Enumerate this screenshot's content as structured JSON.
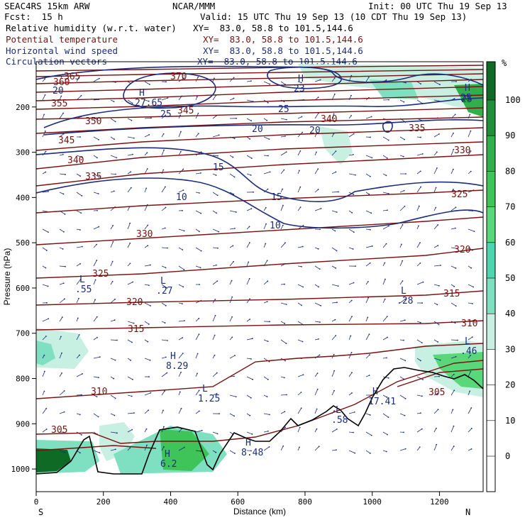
{
  "header": {
    "title_left": "SEAC4RS 15km ARW",
    "title_center": "NCAR/MMM",
    "init": "Init: 00 UTC Thu 19 Sep 13",
    "fcst": "Fcst:  15 h",
    "valid": "Valid: 15 UTC Thu 19 Sep 13 (10 CDT Thu 19 Sep 13)",
    "fields": [
      {
        "name": "Relative humidity (w.r.t. water)",
        "xy": "XY=  83.0, 58.8 to 101.5,144.6"
      },
      {
        "name": "Potential temperature",
        "xy": "XY=  83.0, 58.8 to 101.5,144.6"
      },
      {
        "name": "Horizontal wind speed",
        "xy": "XY=  83.0, 58.8 to 101.5,144.6"
      },
      {
        "name": "Circulation vectors",
        "xy": "XY=  83.0, 58.8 to 101.5,144.6"
      }
    ]
  },
  "colors": {
    "theta": "#7a1010",
    "wind": "#1c2d7a",
    "terrain": "#000000",
    "rh_30": "#c8f0e2",
    "rh_40": "#7ee0c0",
    "rh_50": "#4fd4b0",
    "rh_60": "#58d878",
    "rh_70": "#3fc45a",
    "rh_80": "#2fb04c",
    "rh_90": "#1f8f3a",
    "rh_100": "#0f6a25"
  },
  "chart_data": {
    "type": "heatmap",
    "subtype": "vertical cross-section",
    "xlabel": "Distance (km)",
    "ylabel": "Pressure (hPa)",
    "xlim": [
      0,
      1330
    ],
    "ylim": [
      1050,
      100
    ],
    "x_ticks": [
      "0",
      "200",
      "400",
      "600",
      "800",
      "1000",
      "1200"
    ],
    "y_ticks": [
      "200",
      "300",
      "400",
      "500",
      "600",
      "700",
      "800",
      "900",
      "1000"
    ],
    "end_labels": {
      "left": "S",
      "right": "N"
    },
    "colorbar": {
      "unit": "%",
      "ticks": [
        "0",
        "10",
        "20",
        "30",
        "40",
        "50",
        "60",
        "70",
        "80",
        "90",
        "100"
      ],
      "shaded_min": 30
    },
    "theta_labels": [
      "365",
      "360",
      "355",
      "350",
      "345",
      "340",
      "335",
      "330",
      "325",
      "320",
      "315",
      "310",
      "305",
      "370",
      "345",
      "340",
      "335",
      "330",
      "325",
      "320",
      "315",
      "310",
      "305"
    ],
    "speed_labels": [
      "20",
      "25",
      "20",
      "15",
      "10",
      "15",
      "10",
      "25",
      "20",
      "25"
    ],
    "extrema": [
      {
        "type": "H",
        "value": "27.65"
      },
      {
        "type": "H",
        "value": "23"
      },
      {
        "type": "H",
        "value": "25"
      },
      {
        "type": "L",
        "value": ".55"
      },
      {
        "type": "L",
        "value": ".27"
      },
      {
        "type": "L",
        "value": ".28"
      },
      {
        "type": "L",
        "value": "1.25"
      },
      {
        "type": "L",
        "value": ".58"
      },
      {
        "type": "L",
        "value": ".46"
      },
      {
        "type": "H",
        "value": "8.29"
      },
      {
        "type": "H",
        "value": "8.48"
      },
      {
        "type": "H",
        "value": "17.41"
      },
      {
        "type": "H",
        "value": "6.2"
      }
    ]
  }
}
